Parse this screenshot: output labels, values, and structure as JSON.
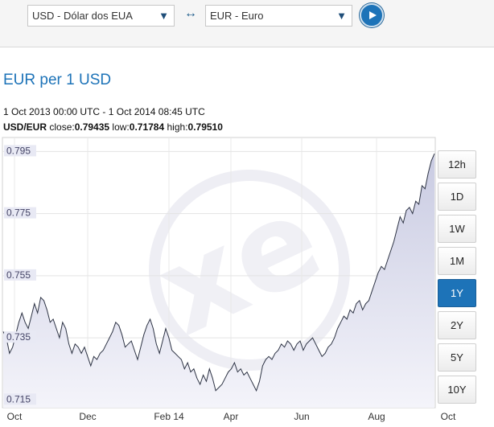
{
  "converter": {
    "from_currency": "USD - Dólar dos EUA",
    "to_currency": "EUR - Euro",
    "swap_symbol": "↔",
    "dropdown_icon": "▼",
    "go_icon": "play-icon"
  },
  "chart_header": {
    "title": "EUR per 1 USD",
    "date_range": "1 Oct 2013 00:00 UTC - 1 Oct 2014 08:45 UTC",
    "pair": "USD/EUR",
    "close_label": " close:",
    "close_value": "0.79435",
    "low_label": " low:",
    "low_value": "0.71784",
    "high_label": " high:",
    "high_value": "0.79510"
  },
  "range_buttons": [
    {
      "label": "12h",
      "active": false
    },
    {
      "label": "1D",
      "active": false
    },
    {
      "label": "1W",
      "active": false
    },
    {
      "label": "1M",
      "active": false
    },
    {
      "label": "1Y",
      "active": true
    },
    {
      "label": "2Y",
      "active": false
    },
    {
      "label": "5Y",
      "active": false
    },
    {
      "label": "10Y",
      "active": false
    }
  ],
  "chart_data": {
    "type": "area",
    "title": "EUR per 1 USD",
    "xlabel": "",
    "ylabel": "",
    "x_tick_labels": [
      "Oct",
      "Dec",
      "Feb 14",
      "Apr",
      "Jun",
      "Aug",
      "Oct"
    ],
    "y_tick_labels": [
      "0.795",
      "0.775",
      "0.755",
      "0.735",
      "0.715"
    ],
    "ylim": [
      0.7125,
      0.7995
    ],
    "grid": true,
    "watermark": "xe",
    "series": [
      {
        "values": [
          0.737,
          0.735,
          0.73,
          0.732,
          0.736,
          0.74,
          0.743,
          0.74,
          0.738,
          0.742,
          0.746,
          0.743,
          0.748,
          0.747,
          0.744,
          0.74,
          0.741,
          0.738,
          0.735,
          0.74,
          0.738,
          0.733,
          0.73,
          0.733,
          0.732,
          0.73,
          0.732,
          0.729,
          0.726,
          0.729,
          0.728,
          0.73,
          0.731,
          0.733,
          0.735,
          0.737,
          0.74,
          0.739,
          0.736,
          0.732,
          0.733,
          0.734,
          0.731,
          0.728,
          0.732,
          0.736,
          0.739,
          0.741,
          0.738,
          0.733,
          0.73,
          0.734,
          0.738,
          0.735,
          0.731,
          0.73,
          0.729,
          0.728,
          0.725,
          0.727,
          0.724,
          0.725,
          0.722,
          0.72,
          0.723,
          0.721,
          0.725,
          0.722,
          0.718,
          0.719,
          0.72,
          0.722,
          0.724,
          0.725,
          0.727,
          0.724,
          0.725,
          0.723,
          0.724,
          0.722,
          0.72,
          0.718,
          0.721,
          0.726,
          0.728,
          0.729,
          0.728,
          0.73,
          0.731,
          0.733,
          0.732,
          0.734,
          0.733,
          0.731,
          0.733,
          0.734,
          0.731,
          0.733,
          0.734,
          0.735,
          0.733,
          0.731,
          0.729,
          0.73,
          0.732,
          0.733,
          0.735,
          0.738,
          0.74,
          0.742,
          0.741,
          0.744,
          0.743,
          0.746,
          0.747,
          0.744,
          0.746,
          0.747,
          0.75,
          0.753,
          0.756,
          0.758,
          0.757,
          0.76,
          0.763,
          0.766,
          0.77,
          0.774,
          0.772,
          0.776,
          0.777,
          0.775,
          0.779,
          0.778,
          0.784,
          0.783,
          0.788,
          0.792,
          0.7943
        ]
      }
    ]
  }
}
